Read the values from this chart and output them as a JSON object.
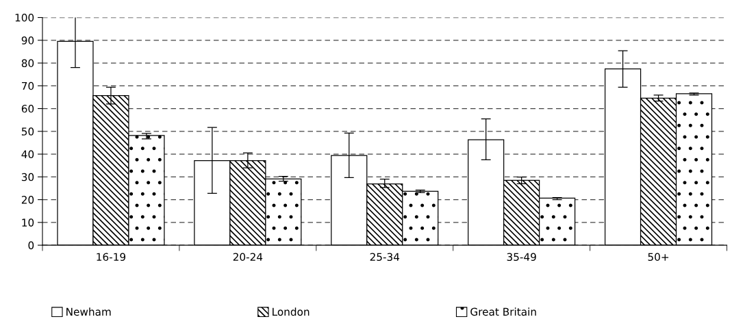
{
  "chart_data": {
    "type": "bar",
    "categories": [
      "16-19",
      "20-24",
      "25-34",
      "35-49",
      "50+"
    ],
    "series": [
      {
        "name": "Newham",
        "color": "#ffffff",
        "values": [
          89.5,
          37.1,
          39.4,
          46.3,
          77.4
        ],
        "errors": [
          [
            78.0,
            100.8
          ],
          [
            22.8,
            51.7
          ],
          [
            29.7,
            49.2
          ],
          [
            37.5,
            55.5
          ],
          [
            69.4,
            85.4
          ]
        ]
      },
      {
        "name": "London",
        "color": "#000000",
        "values": [
          65.7,
          37.1,
          26.9,
          28.5,
          64.6
        ],
        "errors": [
          [
            62.0,
            69.4
          ],
          [
            34.0,
            40.5
          ],
          [
            25.3,
            29.0
          ],
          [
            27.0,
            29.9
          ],
          [
            63.3,
            65.9
          ]
        ]
      },
      {
        "name": "Great Britain",
        "color": "#000000",
        "values": [
          48.2,
          29.1,
          23.7,
          20.7,
          66.5
        ],
        "errors": [
          [
            46.7,
            49.1
          ],
          [
            28.1,
            30.2
          ],
          [
            23.1,
            24.2
          ],
          [
            20.0,
            20.9
          ],
          [
            65.9,
            66.8
          ]
        ]
      }
    ],
    "ylim": [
      0,
      100
    ],
    "yticks": [
      0,
      10,
      20,
      30,
      40,
      50,
      60,
      70,
      80,
      90,
      100
    ],
    "grid": "y",
    "legend": "bottom"
  }
}
